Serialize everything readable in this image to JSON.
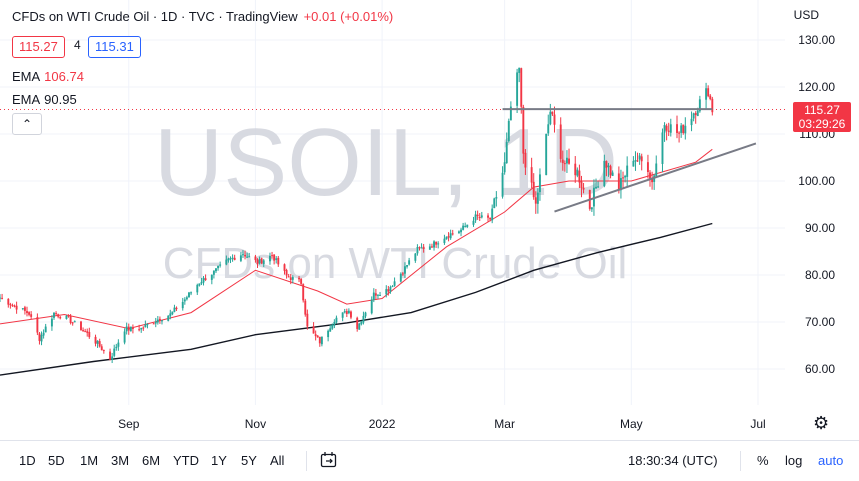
{
  "header": {
    "title": "CFDs on WTI Crude Oil · 1D · TVC · TradingView",
    "change": "+0.01 (+0.01%)",
    "sell_price": "115.27",
    "spread": "4",
    "buy_price": "115.31",
    "ema1_label": "EMA",
    "ema1_value": "106.74",
    "ema2_label": "EMA",
    "ema2_value": "90.95",
    "currency": "USD"
  },
  "price_tag": {
    "price": "115.27",
    "countdown": "03:29:26"
  },
  "watermark": {
    "symbol": "USOIL, 1D",
    "description": "CFDs on WTI Crude Oil"
  },
  "bottom_bar": {
    "timeframes": [
      "1D",
      "5D",
      "1M",
      "3M",
      "6M",
      "YTD",
      "1Y",
      "5Y",
      "All"
    ],
    "clock": "18:30:34 (UTC)",
    "percent": "%",
    "log": "log",
    "auto": "auto"
  },
  "icons": [
    "chevron-up-icon",
    "calendar-range-icon",
    "gear-icon"
  ],
  "colors": {
    "up": "#26a69a",
    "down": "#f23645",
    "ema_fast": "#f23645",
    "ema_slow": "#131722",
    "trendline": "#787b86"
  },
  "chart_data": {
    "type": "candlestick",
    "symbol": "USOIL",
    "interval": "1D",
    "ylim": [
      55,
      133
    ],
    "y_ticks": [
      60,
      70,
      80,
      90,
      100,
      110,
      120,
      130
    ],
    "y_tick_labels": [
      "60.00",
      "70.00",
      "80.00",
      "90.00",
      "100.00",
      "110.00",
      "120.00",
      "130.00"
    ],
    "x_tick_labels": [
      "Sep",
      "Nov",
      "2022",
      "Mar",
      "May",
      "Jul"
    ],
    "x_tick_dates": [
      "2021-09-01",
      "2021-11-01",
      "2022-01-01",
      "2022-03-01",
      "2022-05-01",
      "2022-07-01"
    ],
    "x_range": [
      "2021-07-01",
      "2022-07-14"
    ],
    "last_price": 115.27,
    "close_series": [
      {
        "date": "2021-07-01",
        "close": 75.2
      },
      {
        "date": "2021-07-08",
        "close": 73.4
      },
      {
        "date": "2021-07-15",
        "close": 71.8
      },
      {
        "date": "2021-07-20",
        "close": 66.5
      },
      {
        "date": "2021-07-27",
        "close": 71.9
      },
      {
        "date": "2021-08-03",
        "close": 70.6
      },
      {
        "date": "2021-08-10",
        "close": 68.3
      },
      {
        "date": "2021-08-17",
        "close": 65.4
      },
      {
        "date": "2021-08-23",
        "close": 62.2
      },
      {
        "date": "2021-08-30",
        "close": 68.5
      },
      {
        "date": "2021-09-07",
        "close": 68.6
      },
      {
        "date": "2021-09-14",
        "close": 70.4
      },
      {
        "date": "2021-09-21",
        "close": 71.6
      },
      {
        "date": "2021-09-28",
        "close": 74.8
      },
      {
        "date": "2021-10-05",
        "close": 78.5
      },
      {
        "date": "2021-10-12",
        "close": 80.6
      },
      {
        "date": "2021-10-19",
        "close": 83.2
      },
      {
        "date": "2021-10-26",
        "close": 84.6
      },
      {
        "date": "2021-11-02",
        "close": 82.6
      },
      {
        "date": "2021-11-09",
        "close": 84.2
      },
      {
        "date": "2021-11-16",
        "close": 79.8
      },
      {
        "date": "2021-11-23",
        "close": 78.4
      },
      {
        "date": "2021-11-26",
        "close": 68.8
      },
      {
        "date": "2021-12-02",
        "close": 65.8
      },
      {
        "date": "2021-12-09",
        "close": 70.6
      },
      {
        "date": "2021-12-16",
        "close": 72.4
      },
      {
        "date": "2021-12-20",
        "close": 68.8
      },
      {
        "date": "2021-12-28",
        "close": 75.9
      },
      {
        "date": "2022-01-04",
        "close": 77.0
      },
      {
        "date": "2022-01-11",
        "close": 80.9
      },
      {
        "date": "2022-01-18",
        "close": 85.4
      },
      {
        "date": "2022-01-25",
        "close": 86.4
      },
      {
        "date": "2022-02-01",
        "close": 88.4
      },
      {
        "date": "2022-02-08",
        "close": 89.6
      },
      {
        "date": "2022-02-15",
        "close": 92.4
      },
      {
        "date": "2022-02-22",
        "close": 91.9
      },
      {
        "date": "2022-03-01",
        "close": 103.4
      },
      {
        "date": "2022-03-04",
        "close": 115.7
      },
      {
        "date": "2022-03-08",
        "close": 123.7
      },
      {
        "date": "2022-03-10",
        "close": 106.0
      },
      {
        "date": "2022-03-15",
        "close": 96.4
      },
      {
        "date": "2022-03-16",
        "close": 95.0
      },
      {
        "date": "2022-03-23",
        "close": 114.9
      },
      {
        "date": "2022-03-29",
        "close": 104.2
      },
      {
        "date": "2022-04-05",
        "close": 101.9
      },
      {
        "date": "2022-04-11",
        "close": 94.3
      },
      {
        "date": "2022-04-18",
        "close": 104.6
      },
      {
        "date": "2022-04-25",
        "close": 98.5
      },
      {
        "date": "2022-05-02",
        "close": 105.2
      },
      {
        "date": "2022-05-09",
        "close": 103.1
      },
      {
        "date": "2022-05-11",
        "close": 99.8
      },
      {
        "date": "2022-05-17",
        "close": 112.4
      },
      {
        "date": "2022-05-24",
        "close": 110.0
      },
      {
        "date": "2022-05-31",
        "close": 114.7
      },
      {
        "date": "2022-06-07",
        "close": 119.4
      },
      {
        "date": "2022-06-09",
        "close": 115.27
      }
    ],
    "ema_fast": {
      "label": "EMA",
      "last": 106.74,
      "color": "#f23645"
    },
    "ema_slow": {
      "label": "EMA",
      "last": 90.95,
      "color": "#131722"
    },
    "ema_fast_points": [
      {
        "date": "2021-07-01",
        "value": 69.6
      },
      {
        "date": "2021-08-01",
        "value": 71.6
      },
      {
        "date": "2021-09-01",
        "value": 68.6
      },
      {
        "date": "2021-10-01",
        "value": 72.0
      },
      {
        "date": "2021-11-01",
        "value": 81.0
      },
      {
        "date": "2021-12-01",
        "value": 76.6
      },
      {
        "date": "2021-12-15",
        "value": 73.8
      },
      {
        "date": "2022-01-01",
        "value": 75.0
      },
      {
        "date": "2022-02-01",
        "value": 86.0
      },
      {
        "date": "2022-03-01",
        "value": 93.4
      },
      {
        "date": "2022-03-15",
        "value": 98.7
      },
      {
        "date": "2022-04-01",
        "value": 100.0
      },
      {
        "date": "2022-05-01",
        "value": 100.0
      },
      {
        "date": "2022-06-01",
        "value": 104.0
      },
      {
        "date": "2022-06-09",
        "value": 106.74
      }
    ],
    "ema_slow_points": [
      {
        "date": "2021-07-01",
        "value": 58.7
      },
      {
        "date": "2021-08-15",
        "value": 61.6
      },
      {
        "date": "2021-10-01",
        "value": 64.2
      },
      {
        "date": "2021-11-01",
        "value": 67.3
      },
      {
        "date": "2021-12-15",
        "value": 69.8
      },
      {
        "date": "2022-01-15",
        "value": 72.0
      },
      {
        "date": "2022-02-15",
        "value": 76.3
      },
      {
        "date": "2022-03-15",
        "value": 81.0
      },
      {
        "date": "2022-04-15",
        "value": 84.8
      },
      {
        "date": "2022-05-15",
        "value": 88.0
      },
      {
        "date": "2022-06-09",
        "value": 90.95
      }
    ],
    "trendlines": [
      {
        "name": "resistance",
        "from": {
          "date": "2022-02-28",
          "value": 115.3
        },
        "to": {
          "date": "2022-06-09",
          "value": 115.3
        }
      },
      {
        "name": "rising-support",
        "from": {
          "date": "2022-03-25",
          "value": 93.5
        },
        "to": {
          "date": "2022-06-30",
          "value": 108.0
        }
      }
    ]
  }
}
